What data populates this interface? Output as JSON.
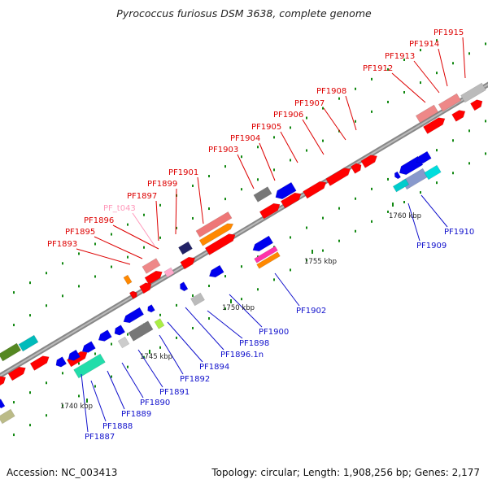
{
  "title": "Pyrococcus furiosus DSM 3638, complete genome",
  "footer": {
    "accession": "Accession: NC_003413",
    "topology": "Topology: circular; Length: 1,908,256 bp; Genes: 2,177"
  },
  "colors": {
    "forward_gene": "#ff0000",
    "reverse_gene": "#0000ee",
    "trna": "#ffaacc",
    "backbone": "#999999"
  },
  "ticks": [
    "1740 kbp",
    "1745 kbp",
    "1750 kbp",
    "1755 kbp",
    "1760 kbp"
  ],
  "upper_labels": [
    "PF1893",
    "PF1895",
    "PF1896",
    "PF_t043",
    "PF1897",
    "PF1899",
    "PF1901",
    "PF1903",
    "PF1904",
    "PF1905",
    "PF1906",
    "PF1907",
    "PF1908",
    "PF1912",
    "PF1913",
    "PF1914",
    "PF1915"
  ],
  "lower_labels": [
    "PF1887",
    "PF1888",
    "PF1889",
    "PF1890",
    "PF1891",
    "PF1892",
    "PF1894",
    "PF1896.1n",
    "PF1898",
    "PF1900",
    "PF1902",
    "PF1909",
    "PF1910"
  ]
}
